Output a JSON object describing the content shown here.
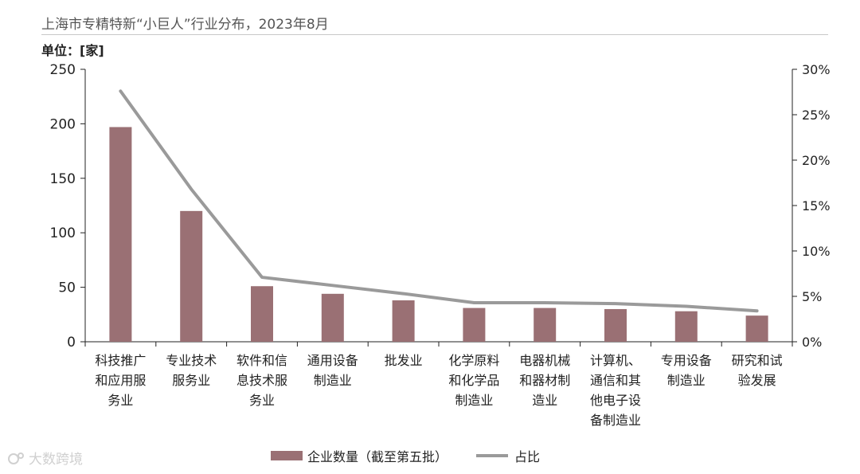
{
  "title": "上海市专精特新“小巨人”行业分布，2023年8月",
  "unit_label": "单位：[家]",
  "watermark": "大数跨境",
  "colors": {
    "bar": "#9a7074",
    "line": "#9a9a9a",
    "axis": "#222222"
  },
  "chart_data": {
    "type": "bar",
    "categories": [
      "科技推广和应用服务业",
      "专业技术服务业",
      "软件和信息技术服务业",
      "通用设备制造业",
      "批发业",
      "化学原料和化学品制造业",
      "电器机械和器材制造业",
      "计算机、通信和其他电子设备制造业",
      "专用设备制造业",
      "研究和试验发展"
    ],
    "category_label_lines": [
      [
        "科技推广",
        "和应用服",
        "务业"
      ],
      [
        "专业技术",
        "服务业"
      ],
      [
        "软件和信",
        "息技术服",
        "务业"
      ],
      [
        "通用设备",
        "制造业"
      ],
      [
        "批发业"
      ],
      [
        "化学原料",
        "和化学品",
        "制造业"
      ],
      [
        "电器机械",
        "和器材制",
        "造业"
      ],
      [
        "计算机、",
        "通信和其",
        "他电子设",
        "备制造业"
      ],
      [
        "专用设备",
        "制造业"
      ],
      [
        "研究和试",
        "验发展"
      ]
    ],
    "series": [
      {
        "name": "企业数量（截至第五批）",
        "type": "bar",
        "axis": "left",
        "values": [
          197,
          120,
          51,
          44,
          38,
          31,
          31,
          30,
          28,
          24
        ]
      },
      {
        "name": "占比",
        "type": "line",
        "axis": "right",
        "values": [
          27.6,
          16.8,
          7.1,
          6.2,
          5.3,
          4.3,
          4.3,
          4.2,
          3.9,
          3.4
        ]
      }
    ],
    "left_axis": {
      "ylim": [
        0,
        250
      ],
      "ticks": [
        "0",
        "50",
        "100",
        "150",
        "200",
        "250"
      ]
    },
    "right_axis": {
      "ylim": [
        0,
        30
      ],
      "ticks": [
        "0%",
        "5%",
        "10%",
        "15%",
        "20%",
        "25%",
        "30%"
      ]
    },
    "legend_position": "bottom-center",
    "grid": false
  }
}
